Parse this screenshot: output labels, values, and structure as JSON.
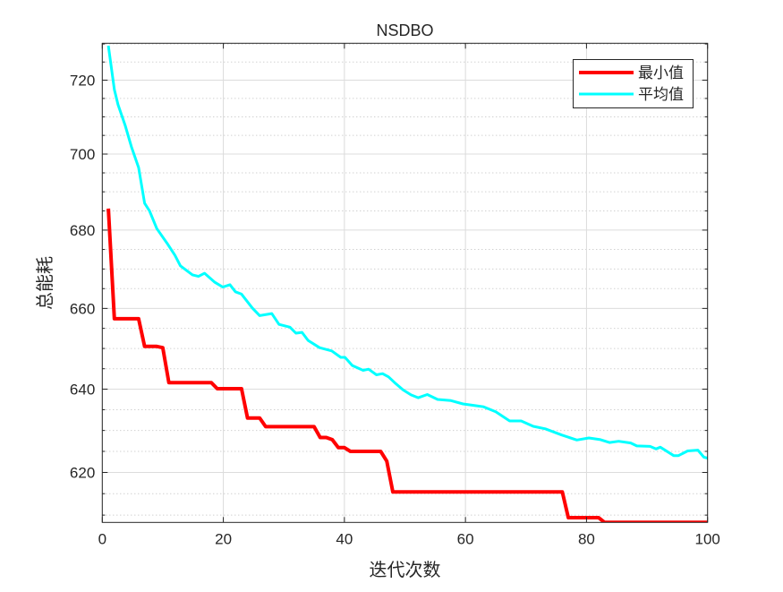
{
  "chart_data": {
    "type": "line",
    "title": "NSDBO",
    "xlabel": "迭代次数",
    "ylabel": "总能耗",
    "xlim": [
      0,
      100
    ],
    "ylim": [
      608.3,
      730.2
    ],
    "yscale": "log",
    "xticks": [
      0,
      20,
      40,
      60,
      80,
      100
    ],
    "yticks": [
      620,
      640,
      660,
      680,
      700,
      720
    ],
    "yminor_step": 5,
    "grid": true,
    "legend_position": "top-right",
    "series": [
      {
        "name": "最小值",
        "color": "#ff0000",
        "x": [
          1,
          2,
          6,
          7,
          9,
          10,
          11,
          18,
          19,
          23,
          24,
          26,
          27,
          35,
          36,
          37,
          38,
          39,
          40,
          41,
          46,
          47,
          48,
          76,
          77,
          82,
          83,
          100
        ],
        "values": [
          685.6,
          657.4,
          657.4,
          650.5,
          650.5,
          650.2,
          641.6,
          641.6,
          640.1,
          640.1,
          633.0,
          633.0,
          630.9,
          630.9,
          628.3,
          628.3,
          627.8,
          625.9,
          625.9,
          625.0,
          625.0,
          622.7,
          615.4,
          615.4,
          609.4,
          609.4,
          608.3,
          608.3
        ]
      },
      {
        "name": "平均值",
        "color": "#00ffff",
        "x": [
          1,
          2,
          2.6,
          3.8,
          4.8,
          6,
          7,
          7.8,
          9,
          10.7,
          12,
          12.9,
          14.9,
          15.9,
          16.9,
          18.6,
          19.9,
          21.1,
          22,
          23,
          24.8,
          26,
          28,
          29.2,
          31,
          32,
          33,
          34,
          35.9,
          37.9,
          39.4,
          40.1,
          41.3,
          43.1,
          44,
          45.3,
          46.3,
          47.3,
          48.3,
          49.7,
          51,
          52.2,
          53.7,
          55.4,
          57.6,
          59.6,
          61.6,
          63,
          65,
          67.3,
          69.2,
          71.2,
          73.2,
          75.9,
          78.4,
          80.4,
          82.3,
          83.8,
          85.3,
          87.3,
          88.3,
          90.5,
          91.5,
          92.2,
          94.4,
          95.2,
          96.7,
          98.4,
          99.4,
          100
        ],
        "values": [
          729.5,
          717.4,
          713.3,
          707.6,
          702,
          696.4,
          687,
          685,
          680.4,
          676.6,
          673.5,
          670.8,
          668.5,
          668.1,
          668.9,
          666.6,
          665.4,
          666,
          664.2,
          663.6,
          660.1,
          658.2,
          658.7,
          656,
          655.3,
          653.8,
          654,
          652,
          650.2,
          649.4,
          647.8,
          647.8,
          645.8,
          644.6,
          644.9,
          643.5,
          643.8,
          643,
          641.6,
          639.8,
          638.6,
          637.9,
          638.7,
          637.5,
          637.2,
          636.4,
          636,
          635.7,
          634.5,
          632.3,
          632.3,
          631,
          630.4,
          628.9,
          627.7,
          628.2,
          627.8,
          627.1,
          627.4,
          627,
          626.3,
          626.2,
          625.6,
          626,
          624,
          624,
          625.1,
          625.3,
          623.6,
          623.4
        ]
      }
    ]
  }
}
